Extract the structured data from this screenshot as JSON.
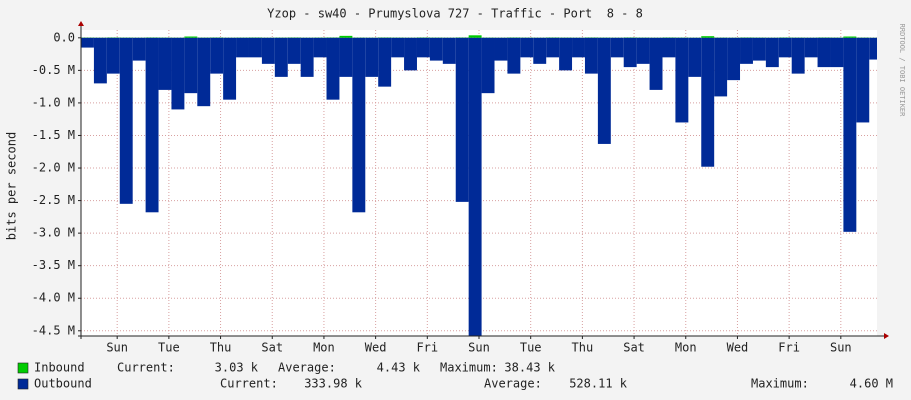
{
  "chart_data": {
    "type": "area",
    "title": "Yzop - sw40 - Prumyslova 727 - Traffic - Port  8 - 8",
    "y_label": "bits per second",
    "watermark": "RRDTOOL / TOBI OETIKER",
    "xlim": [
      -0.9,
      29.9
    ],
    "xticks": [
      {
        "value": 0.5,
        "label": "Sun"
      },
      {
        "value": 2.5,
        "label": "Tue"
      },
      {
        "value": 4.5,
        "label": "Thu"
      },
      {
        "value": 6.5,
        "label": "Sat"
      },
      {
        "value": 8.5,
        "label": "Mon"
      },
      {
        "value": 10.5,
        "label": "Wed"
      },
      {
        "value": 12.5,
        "label": "Fri"
      },
      {
        "value": 14.5,
        "label": "Sun"
      },
      {
        "value": 16.5,
        "label": "Tue"
      },
      {
        "value": 18.5,
        "label": "Thu"
      },
      {
        "value": 20.5,
        "label": "Sat"
      },
      {
        "value": 22.5,
        "label": "Mon"
      },
      {
        "value": 24.5,
        "label": "Wed"
      },
      {
        "value": 26.5,
        "label": "Fri"
      },
      {
        "value": 28.5,
        "label": "Sun"
      }
    ],
    "ylim": [
      -4580000,
      120000
    ],
    "yticks": [
      {
        "value": 0,
        "label": "0.0"
      },
      {
        "value": -500000,
        "label": "-0.5 M"
      },
      {
        "value": -1000000,
        "label": "-1.0 M"
      },
      {
        "value": -1500000,
        "label": "-1.5 M"
      },
      {
        "value": -2000000,
        "label": "-2.0 M"
      },
      {
        "value": -2500000,
        "label": "-2.5 M"
      },
      {
        "value": -3000000,
        "label": "-3.0 M"
      },
      {
        "value": -3500000,
        "label": "-3.5 M"
      },
      {
        "value": -4000000,
        "label": "-4.0 M"
      },
      {
        "value": -4500000,
        "label": "-4.5 M"
      }
    ],
    "grid": true,
    "x": [
      -0.9,
      -0.4,
      0.1,
      0.6,
      1.1,
      1.6,
      2.1,
      2.6,
      3.1,
      3.6,
      4.1,
      4.6,
      5.1,
      5.6,
      6.1,
      6.6,
      7.1,
      7.6,
      8.1,
      8.6,
      9.1,
      9.6,
      10.1,
      10.6,
      11.1,
      11.6,
      12.1,
      12.6,
      13.1,
      13.6,
      14.1,
      14.6,
      15.1,
      15.6,
      16.1,
      16.6,
      17.1,
      17.6,
      18.1,
      18.6,
      19.1,
      19.6,
      20.1,
      20.6,
      21.1,
      21.6,
      22.1,
      22.6,
      23.1,
      23.6,
      24.1,
      24.6,
      25.1,
      25.6,
      26.1,
      26.6,
      27.1,
      27.6,
      28.1,
      28.6,
      29.1,
      29.6
    ],
    "series": [
      {
        "name": "Inbound",
        "color": "#00cc00",
        "values": [
          5000,
          4000,
          6000,
          5000,
          4000,
          6000,
          5000,
          4000,
          20000,
          5000,
          6000,
          4000,
          5000,
          6000,
          4000,
          5000,
          6000,
          4000,
          5000,
          6000,
          30000,
          5000,
          4000,
          6000,
          5000,
          4000,
          6000,
          5000,
          4000,
          6000,
          38430,
          5000,
          4000,
          6000,
          5000,
          4000,
          6000,
          5000,
          4000,
          6000,
          5000,
          4000,
          6000,
          5000,
          4000,
          6000,
          5000,
          4000,
          25000,
          5000,
          4000,
          6000,
          5000,
          4000,
          6000,
          5000,
          4000,
          6000,
          5000,
          20000,
          5000,
          3030
        ]
      },
      {
        "name": "Outbound",
        "color": "#002a97",
        "values": [
          -150000,
          -700000,
          -550000,
          -2550000,
          -350000,
          -2680000,
          -800000,
          -1100000,
          -850000,
          -1050000,
          -550000,
          -950000,
          -300000,
          -300000,
          -400000,
          -600000,
          -400000,
          -600000,
          -300000,
          -950000,
          -600000,
          -2680000,
          -600000,
          -750000,
          -300000,
          -500000,
          -300000,
          -350000,
          -400000,
          -2520000,
          -4580000,
          -850000,
          -350000,
          -550000,
          -300000,
          -400000,
          -300000,
          -500000,
          -300000,
          -550000,
          -1630000,
          -300000,
          -450000,
          -400000,
          -800000,
          -300000,
          -1300000,
          -600000,
          -1980000,
          -900000,
          -650000,
          -400000,
          -350000,
          -450000,
          -300000,
          -550000,
          -300000,
          -450000,
          -450000,
          -2980000,
          -1300000,
          -333980
        ]
      }
    ],
    "legend_stats": [
      [
        {
          "label": "Current:",
          "value": "3.03 k"
        },
        {
          "label": "Average:",
          "value": "4.43 k"
        },
        {
          "label": "Maximum:",
          "value": "38.43 k"
        }
      ],
      [
        {
          "label": "Current:",
          "value": "333.98 k"
        },
        {
          "label": "Average:",
          "value": "528.11 k"
        },
        {
          "label": "Maximum:",
          "value": "4.60 M"
        }
      ]
    ]
  }
}
